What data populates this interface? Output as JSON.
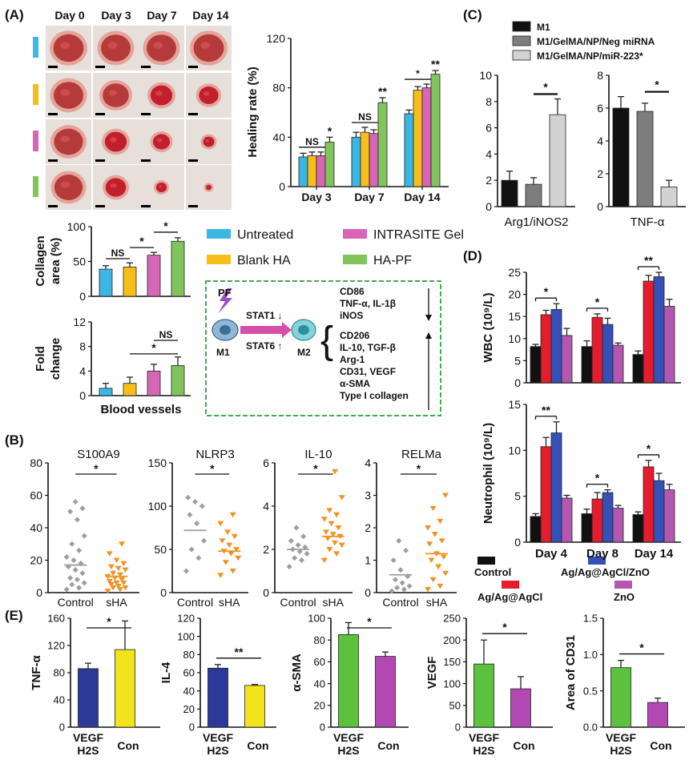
{
  "colors": {
    "untreated": "#3ab7e4",
    "blank_ha": "#f5be18",
    "intrasite": "#d766b6",
    "ha_pf": "#80c45b",
    "m1": "#111111",
    "neg_mirna": "#7d7d7d",
    "mir223": "#d2d2d2",
    "control_d": "#111111",
    "agagcl": "#e41c2b",
    "agagagcl_zno": "#3550b6",
    "zno": "#b457b1",
    "scatter_control": "#9e9e9e",
    "scatter_sha": "#f29221",
    "e_blue": "#2b3a98",
    "e_yellow": "#f2e31a",
    "e_green": "#5cc23e",
    "e_magenta": "#b249b3",
    "pathway_border": "#3eae4f",
    "pathway_arrow": "#d54fa8",
    "stat_label": "#e68a1e",
    "pf_bolt": "#9b4ec4"
  },
  "panel_labels": {
    "a": "(A)",
    "b": "(B)",
    "c": "(C)",
    "d": "(D)",
    "e": "(E)"
  },
  "photo_days": [
    "Day 0",
    "Day 3",
    "Day 7",
    "Day 14"
  ],
  "legend_a": {
    "items": [
      "Untreated",
      "INTRASITE Gel",
      "Blank HA",
      "HA-PF"
    ]
  },
  "pathway": {
    "pf": "PF",
    "stat1": "STAT1 ↓",
    "stat6": "STAT6 ↑",
    "m1": "M1",
    "m2": "M2",
    "markers_m1": [
      "CD86",
      "TNF-α, IL-1β",
      "iNOS"
    ],
    "markers_m2": [
      "CD206",
      "IL-10, TGF-β",
      "Arg-1",
      "CD31, VEGF",
      "α-SMA",
      "Type I collagen"
    ]
  },
  "chart_data": [
    {
      "id": "A-healing",
      "type": "bar",
      "title": "",
      "ylabel": "Healing rate (%)",
      "xlabel": "",
      "ylim": [
        0,
        120
      ],
      "yticks": [
        0,
        40,
        80,
        120
      ],
      "categories": [
        "Day 3",
        "Day 7",
        "Day 14"
      ],
      "series": [
        {
          "name": "Untreated",
          "values": [
            24,
            40,
            59
          ],
          "errors": [
            3,
            4,
            3
          ]
        },
        {
          "name": "Blank HA",
          "values": [
            25,
            44,
            78
          ],
          "errors": [
            3,
            4,
            3
          ]
        },
        {
          "name": "INTRASITE Gel",
          "values": [
            25,
            43,
            80
          ],
          "errors": [
            3,
            3,
            3
          ]
        },
        {
          "name": "HA-PF",
          "values": [
            36,
            68,
            91
          ],
          "errors": [
            4,
            4,
            3
          ]
        }
      ],
      "annotations": [
        "NS",
        "*",
        "NS",
        "**",
        "*",
        "**"
      ]
    },
    {
      "id": "A-collagen",
      "type": "bar",
      "ylabel": "Collagen area (%)",
      "ylim": [
        0,
        100
      ],
      "yticks": [
        0,
        50,
        100
      ],
      "series": [
        {
          "name": "Untreated",
          "values": [
            39
          ],
          "errors": [
            5
          ]
        },
        {
          "name": "Blank HA",
          "values": [
            42
          ],
          "errors": [
            6
          ]
        },
        {
          "name": "INTRASITE Gel",
          "values": [
            59
          ],
          "errors": [
            4
          ]
        },
        {
          "name": "HA-PF",
          "values": [
            79
          ],
          "errors": [
            5
          ]
        }
      ],
      "annotations": [
        "NS",
        "*",
        "*"
      ]
    },
    {
      "id": "A-vessels",
      "type": "bar",
      "ylabel": "Fold change",
      "xlabel": "Blood vessels",
      "ylim": [
        0,
        12
      ],
      "yticks": [
        0,
        4,
        8,
        12
      ],
      "series": [
        {
          "name": "Untreated",
          "values": [
            1.2
          ],
          "errors": [
            0.8
          ]
        },
        {
          "name": "Blank HA",
          "values": [
            2.0
          ],
          "errors": [
            1.0
          ]
        },
        {
          "name": "INTRASITE Gel",
          "values": [
            4.0
          ],
          "errors": [
            1.1
          ]
        },
        {
          "name": "HA-PF",
          "values": [
            4.9
          ],
          "errors": [
            1.4
          ]
        }
      ],
      "annotations": [
        "*",
        "NS"
      ]
    },
    {
      "id": "B-S100A9",
      "type": "scatter",
      "title": "S100A9",
      "ylim": [
        0,
        80
      ],
      "yticks": [
        0,
        20,
        40,
        60,
        80
      ],
      "categories": [
        "Control",
        "sHA"
      ],
      "points": [
        [
          2,
          3,
          5,
          6,
          8,
          9,
          12,
          14,
          16,
          18,
          20,
          22,
          26,
          30,
          35,
          45,
          50,
          52,
          56
        ],
        [
          1,
          2,
          3,
          3,
          4,
          5,
          6,
          6,
          7,
          8,
          9,
          10,
          11,
          12,
          14,
          15,
          16,
          18,
          20,
          24,
          30
        ]
      ],
      "means": [
        17,
        10
      ],
      "annotations": [
        "*"
      ]
    },
    {
      "id": "B-NLRP3",
      "type": "scatter",
      "title": "NLRP3",
      "ylim": [
        0,
        150
      ],
      "yticks": [
        0,
        50,
        100,
        150
      ],
      "categories": [
        "Control",
        "sHA"
      ],
      "points": [
        [
          25,
          40,
          50,
          60,
          80,
          90,
          100,
          105,
          110
        ],
        [
          20,
          25,
          35,
          40,
          45,
          48,
          50,
          55,
          60,
          65,
          70,
          80,
          90
        ]
      ],
      "means": [
        72,
        48
      ],
      "annotations": [
        "*"
      ]
    },
    {
      "id": "B-IL-10",
      "type": "scatter",
      "title": "IL-10",
      "ylim": [
        0,
        6
      ],
      "yticks": [
        0,
        2,
        4,
        6
      ],
      "categories": [
        "Control",
        "sHA"
      ],
      "points": [
        [
          1.2,
          1.5,
          1.6,
          1.8,
          1.9,
          2.0,
          2.1,
          2.2,
          2.4,
          2.6,
          3.0
        ],
        [
          1.5,
          1.8,
          2.0,
          2.2,
          2.3,
          2.5,
          2.6,
          2.7,
          2.8,
          3.0,
          3.2,
          3.4,
          3.6,
          3.8,
          4.4,
          5.6
        ]
      ],
      "means": [
        2.0,
        2.6
      ],
      "annotations": [
        "*"
      ]
    },
    {
      "id": "B-RELMa",
      "type": "scatter",
      "title": "RELMa",
      "ylim": [
        0,
        4
      ],
      "yticks": [
        0,
        1,
        2,
        3,
        4
      ],
      "categories": [
        "Control",
        "sHA"
      ],
      "points": [
        [
          0.05,
          0.1,
          0.15,
          0.2,
          0.3,
          0.4,
          0.5,
          0.7,
          1.0,
          1.3,
          1.6
        ],
        [
          0.1,
          0.2,
          0.4,
          0.6,
          0.8,
          1.0,
          1.1,
          1.2,
          1.5,
          1.6,
          1.8,
          2.0,
          2.2,
          2.6,
          3.0
        ]
      ],
      "means": [
        0.55,
        1.2
      ],
      "annotations": [
        "*"
      ]
    },
    {
      "id": "C-arg1",
      "type": "bar",
      "xlabel": "Arg1/iNOS2",
      "ylim": [
        0,
        10
      ],
      "yticks": [
        0,
        2,
        4,
        6,
        8,
        10
      ],
      "series": [
        {
          "name": "M1",
          "values": [
            2.0
          ],
          "errors": [
            0.7
          ]
        },
        {
          "name": "M1/GelMA/NP/Neg miRNA",
          "values": [
            1.7
          ],
          "errors": [
            0.5
          ]
        },
        {
          "name": "M1/GelMA/NP/miR-223*",
          "values": [
            7.0
          ],
          "errors": [
            1.2
          ]
        }
      ],
      "annotations": [
        "*"
      ]
    },
    {
      "id": "C-tnf",
      "type": "bar",
      "xlabel": "TNF-α",
      "ylim": [
        0,
        8
      ],
      "yticks": [
        0,
        2,
        4,
        6,
        8
      ],
      "series": [
        {
          "name": "M1",
          "values": [
            6.0
          ],
          "errors": [
            0.7
          ]
        },
        {
          "name": "M1/GelMA/NP/Neg miRNA",
          "values": [
            5.8
          ],
          "errors": [
            0.5
          ]
        },
        {
          "name": "M1/GelMA/NP/miR-223*",
          "values": [
            1.2
          ],
          "errors": [
            0.4
          ]
        }
      ],
      "annotations": [
        "*"
      ]
    },
    {
      "id": "D-wbc",
      "type": "bar",
      "ylabel": "WBC (10⁹/L)",
      "ylim": [
        0,
        25
      ],
      "yticks": [
        0,
        5,
        10,
        15,
        20,
        25
      ],
      "categories": [
        "Day 4",
        "Day 8",
        "Day 14"
      ],
      "series": [
        {
          "name": "Control",
          "values": [
            8.2,
            8.2,
            6.4
          ],
          "errors": [
            0.5,
            1.3,
            0.8
          ]
        },
        {
          "name": "Ag/Ag@AgCl",
          "values": [
            15.4,
            14.8,
            23.0
          ],
          "errors": [
            1.0,
            0.8,
            1.3
          ]
        },
        {
          "name": "Ag/Ag@AgCl/ZnO",
          "values": [
            16.6,
            13.2,
            24.0
          ],
          "errors": [
            1.3,
            1.4,
            1.0
          ]
        },
        {
          "name": "ZnO",
          "values": [
            10.7,
            8.5,
            17.3
          ],
          "errors": [
            1.6,
            0.5,
            1.6
          ]
        }
      ],
      "annotations": [
        "*",
        "*",
        "**"
      ]
    },
    {
      "id": "D-neutrophil",
      "type": "bar",
      "ylabel": "Neutrophil (10⁹/L)",
      "ylim": [
        0,
        15
      ],
      "yticks": [
        0,
        5,
        10,
        15
      ],
      "categories": [
        "Day 4",
        "Day 8",
        "Day 14"
      ],
      "series": [
        {
          "name": "Control",
          "values": [
            2.8,
            3.1,
            3.0
          ],
          "errors": [
            0.3,
            0.5,
            0.3
          ]
        },
        {
          "name": "Ag/Ag@AgCl",
          "values": [
            10.4,
            4.7,
            8.2
          ],
          "errors": [
            1.0,
            0.7,
            0.7
          ]
        },
        {
          "name": "Ag/Ag@AgCl/ZnO",
          "values": [
            11.9,
            5.4,
            6.7
          ],
          "errors": [
            1.2,
            0.3,
            0.8
          ]
        },
        {
          "name": "ZnO",
          "values": [
            4.8,
            3.7,
            5.7
          ],
          "errors": [
            0.3,
            0.3,
            0.6
          ]
        }
      ],
      "annotations": [
        "**",
        "*",
        "*"
      ]
    },
    {
      "id": "E-tnf",
      "type": "bar",
      "ylabel": "TNF-α",
      "ylim": [
        0,
        160
      ],
      "yticks": [
        0,
        40,
        80,
        120,
        160
      ],
      "categories": [
        "VEGF\nH2S",
        "Con"
      ],
      "values": [
        86,
        114
      ],
      "errors": [
        8,
        42
      ],
      "annotations": [
        "*"
      ]
    },
    {
      "id": "E-il4",
      "type": "bar",
      "ylabel": "IL-4",
      "ylim": [
        0,
        120
      ],
      "yticks": [
        0,
        20,
        40,
        60,
        80,
        100,
        120
      ],
      "categories": [
        "VEGF\nH2S",
        "Con"
      ],
      "values": [
        65,
        46
      ],
      "errors": [
        4,
        1
      ],
      "annotations": [
        "**"
      ]
    },
    {
      "id": "E-sma",
      "type": "bar",
      "ylabel": "α-SMA",
      "ylim": [
        0,
        100
      ],
      "yticks": [
        0,
        20,
        40,
        60,
        80,
        100
      ],
      "categories": [
        "VEGF\nH2S",
        "Con"
      ],
      "values": [
        85,
        65
      ],
      "errors": [
        11,
        4
      ],
      "annotations": [
        "*"
      ]
    },
    {
      "id": "E-vegf",
      "type": "bar",
      "ylabel": "VEGF",
      "ylim": [
        0,
        250
      ],
      "yticks": [
        0,
        50,
        100,
        150,
        200,
        250
      ],
      "categories": [
        "VEGF\nH2S",
        "Con"
      ],
      "values": [
        145,
        88
      ],
      "errors": [
        55,
        28
      ],
      "annotations": [
        "*"
      ]
    },
    {
      "id": "E-cd31",
      "type": "bar",
      "ylabel": "Area of CD31",
      "ylim": [
        0,
        1.5
      ],
      "yticks": [
        0.0,
        0.5,
        1.0,
        1.5
      ],
      "categories": [
        "VEGF\nH2S",
        "Con"
      ],
      "values": [
        0.82,
        0.34
      ],
      "errors": [
        0.1,
        0.06
      ],
      "annotations": [
        "*"
      ]
    }
  ],
  "legend_d": [
    "Control",
    "Ag/Ag@AgCl/ZnO",
    "Ag/Ag@AgCl",
    "ZnO"
  ]
}
